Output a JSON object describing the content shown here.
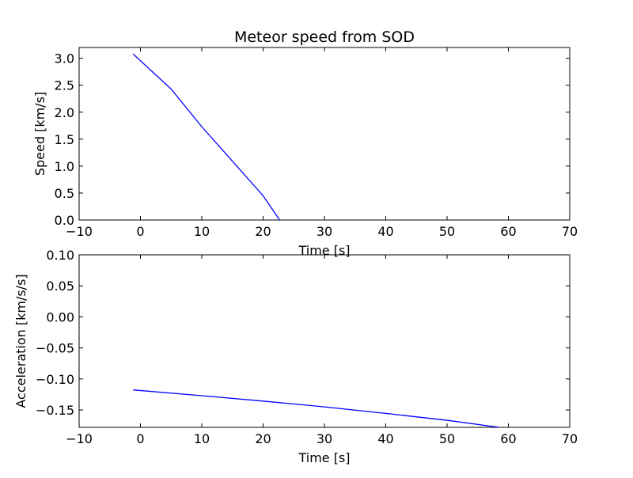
{
  "chart_data": [
    {
      "type": "line",
      "title": "Meteor speed from  SOD",
      "xlabel": "Time [s]",
      "ylabel": "Speed [km/s]",
      "xlim": [
        -10,
        70
      ],
      "ylim": [
        0,
        3.2
      ],
      "xticks": [
        -10,
        0,
        10,
        20,
        30,
        40,
        50,
        60,
        70
      ],
      "yticks": [
        0.0,
        0.5,
        1.0,
        1.5,
        2.0,
        2.5,
        3.0
      ],
      "xtick_labels": [
        "−10",
        "0",
        "10",
        "20",
        "30",
        "40",
        "50",
        "60",
        "70"
      ],
      "ytick_labels": [
        "0.0",
        "0.5",
        "1.0",
        "1.5",
        "2.0",
        "2.5",
        "3.0"
      ],
      "grid": false,
      "series": [
        {
          "color": "#0000ff",
          "x": [
            -1.2,
            5,
            10,
            15,
            20,
            22.7
          ],
          "y": [
            3.08,
            2.43,
            1.73,
            1.09,
            0.45,
            0.0
          ]
        }
      ]
    },
    {
      "type": "line",
      "title": "",
      "xlabel": "Time [s]",
      "ylabel": "Acceleration [km/s/s]",
      "xlim": [
        -10,
        70
      ],
      "ylim": [
        -0.178,
        0.1
      ],
      "xticks": [
        -10,
        0,
        10,
        20,
        30,
        40,
        50,
        60,
        70
      ],
      "yticks": [
        -0.15,
        -0.1,
        -0.05,
        0.0,
        0.05,
        0.1
      ],
      "xtick_labels": [
        "−10",
        "0",
        "10",
        "20",
        "30",
        "40",
        "50",
        "60",
        "70"
      ],
      "ytick_labels": [
        "−0.15",
        "−0.10",
        "−0.05",
        "0.00",
        "0.05",
        "0.10"
      ],
      "grid": false,
      "series": [
        {
          "color": "#0000ff",
          "x": [
            -1.2,
            10,
            20,
            30,
            40,
            50,
            58.5
          ],
          "y": [
            -0.1177,
            -0.127,
            -0.1357,
            -0.145,
            -0.1555,
            -0.1666,
            -0.178
          ]
        }
      ]
    }
  ]
}
